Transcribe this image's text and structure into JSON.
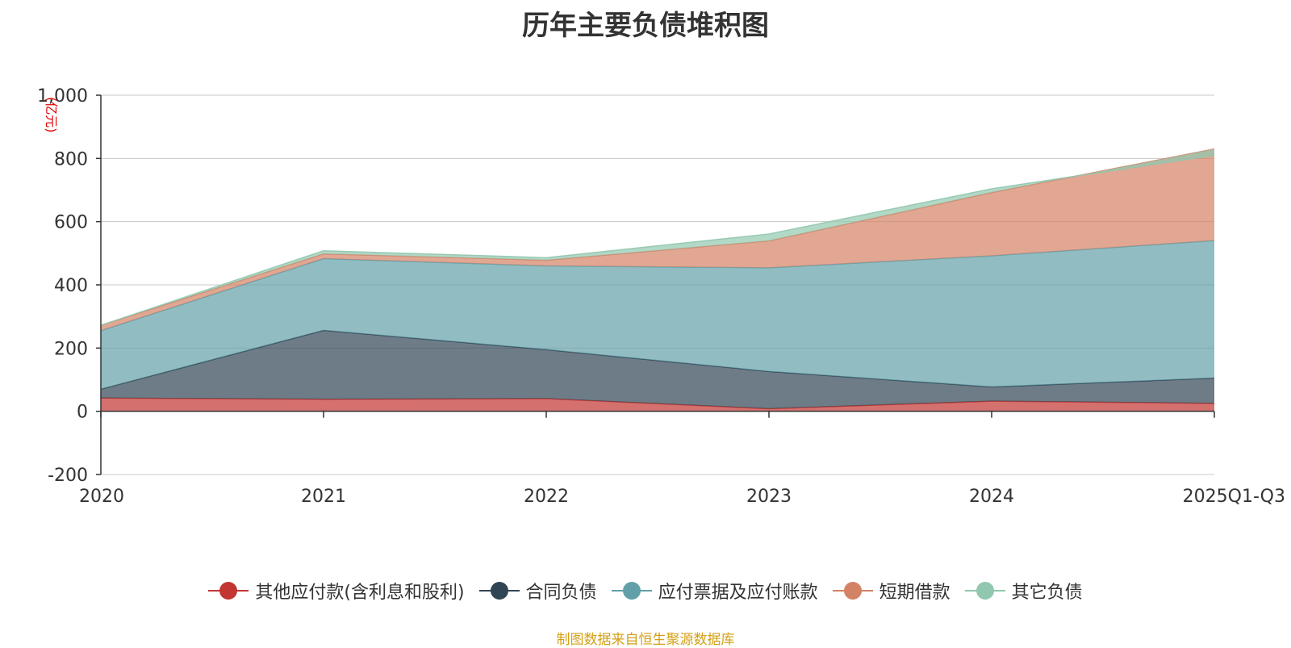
{
  "chart_data": {
    "type": "area",
    "title": "历年主要负债堆积图",
    "unit": "(亿元)",
    "categories": [
      "2020",
      "2021",
      "2022",
      "2023",
      "2024",
      "2025Q1-Q3"
    ],
    "ylim": [
      -200,
      1000
    ],
    "yticks": [
      -200,
      0,
      200,
      400,
      600,
      800,
      1000
    ],
    "ytick_labels": [
      "-200",
      "0",
      "200",
      "400",
      "600",
      "800",
      "1,000"
    ],
    "stacked": true,
    "series": [
      {
        "name": "其他应付款(含利息和股利)",
        "color": "#c23531",
        "values": [
          42,
          38,
          40,
          8,
          32,
          25
        ]
      },
      {
        "name": "合同负债",
        "color": "#2f4554",
        "values": [
          28,
          218,
          155,
          118,
          45,
          80
        ]
      },
      {
        "name": "应付票据及应付账款",
        "color": "#61a0a8",
        "values": [
          185,
          227,
          265,
          328,
          415,
          435
        ]
      },
      {
        "name": "短期借款",
        "color": "#d48265",
        "values": [
          17,
          15,
          18,
          85,
          200,
          290
        ]
      },
      {
        "name": "其它负债",
        "color": "#91c7ae",
        "values": [
          0,
          10,
          8,
          22,
          12,
          -20
        ]
      }
    ],
    "source": "制图数据来自恒生聚源数据库"
  }
}
